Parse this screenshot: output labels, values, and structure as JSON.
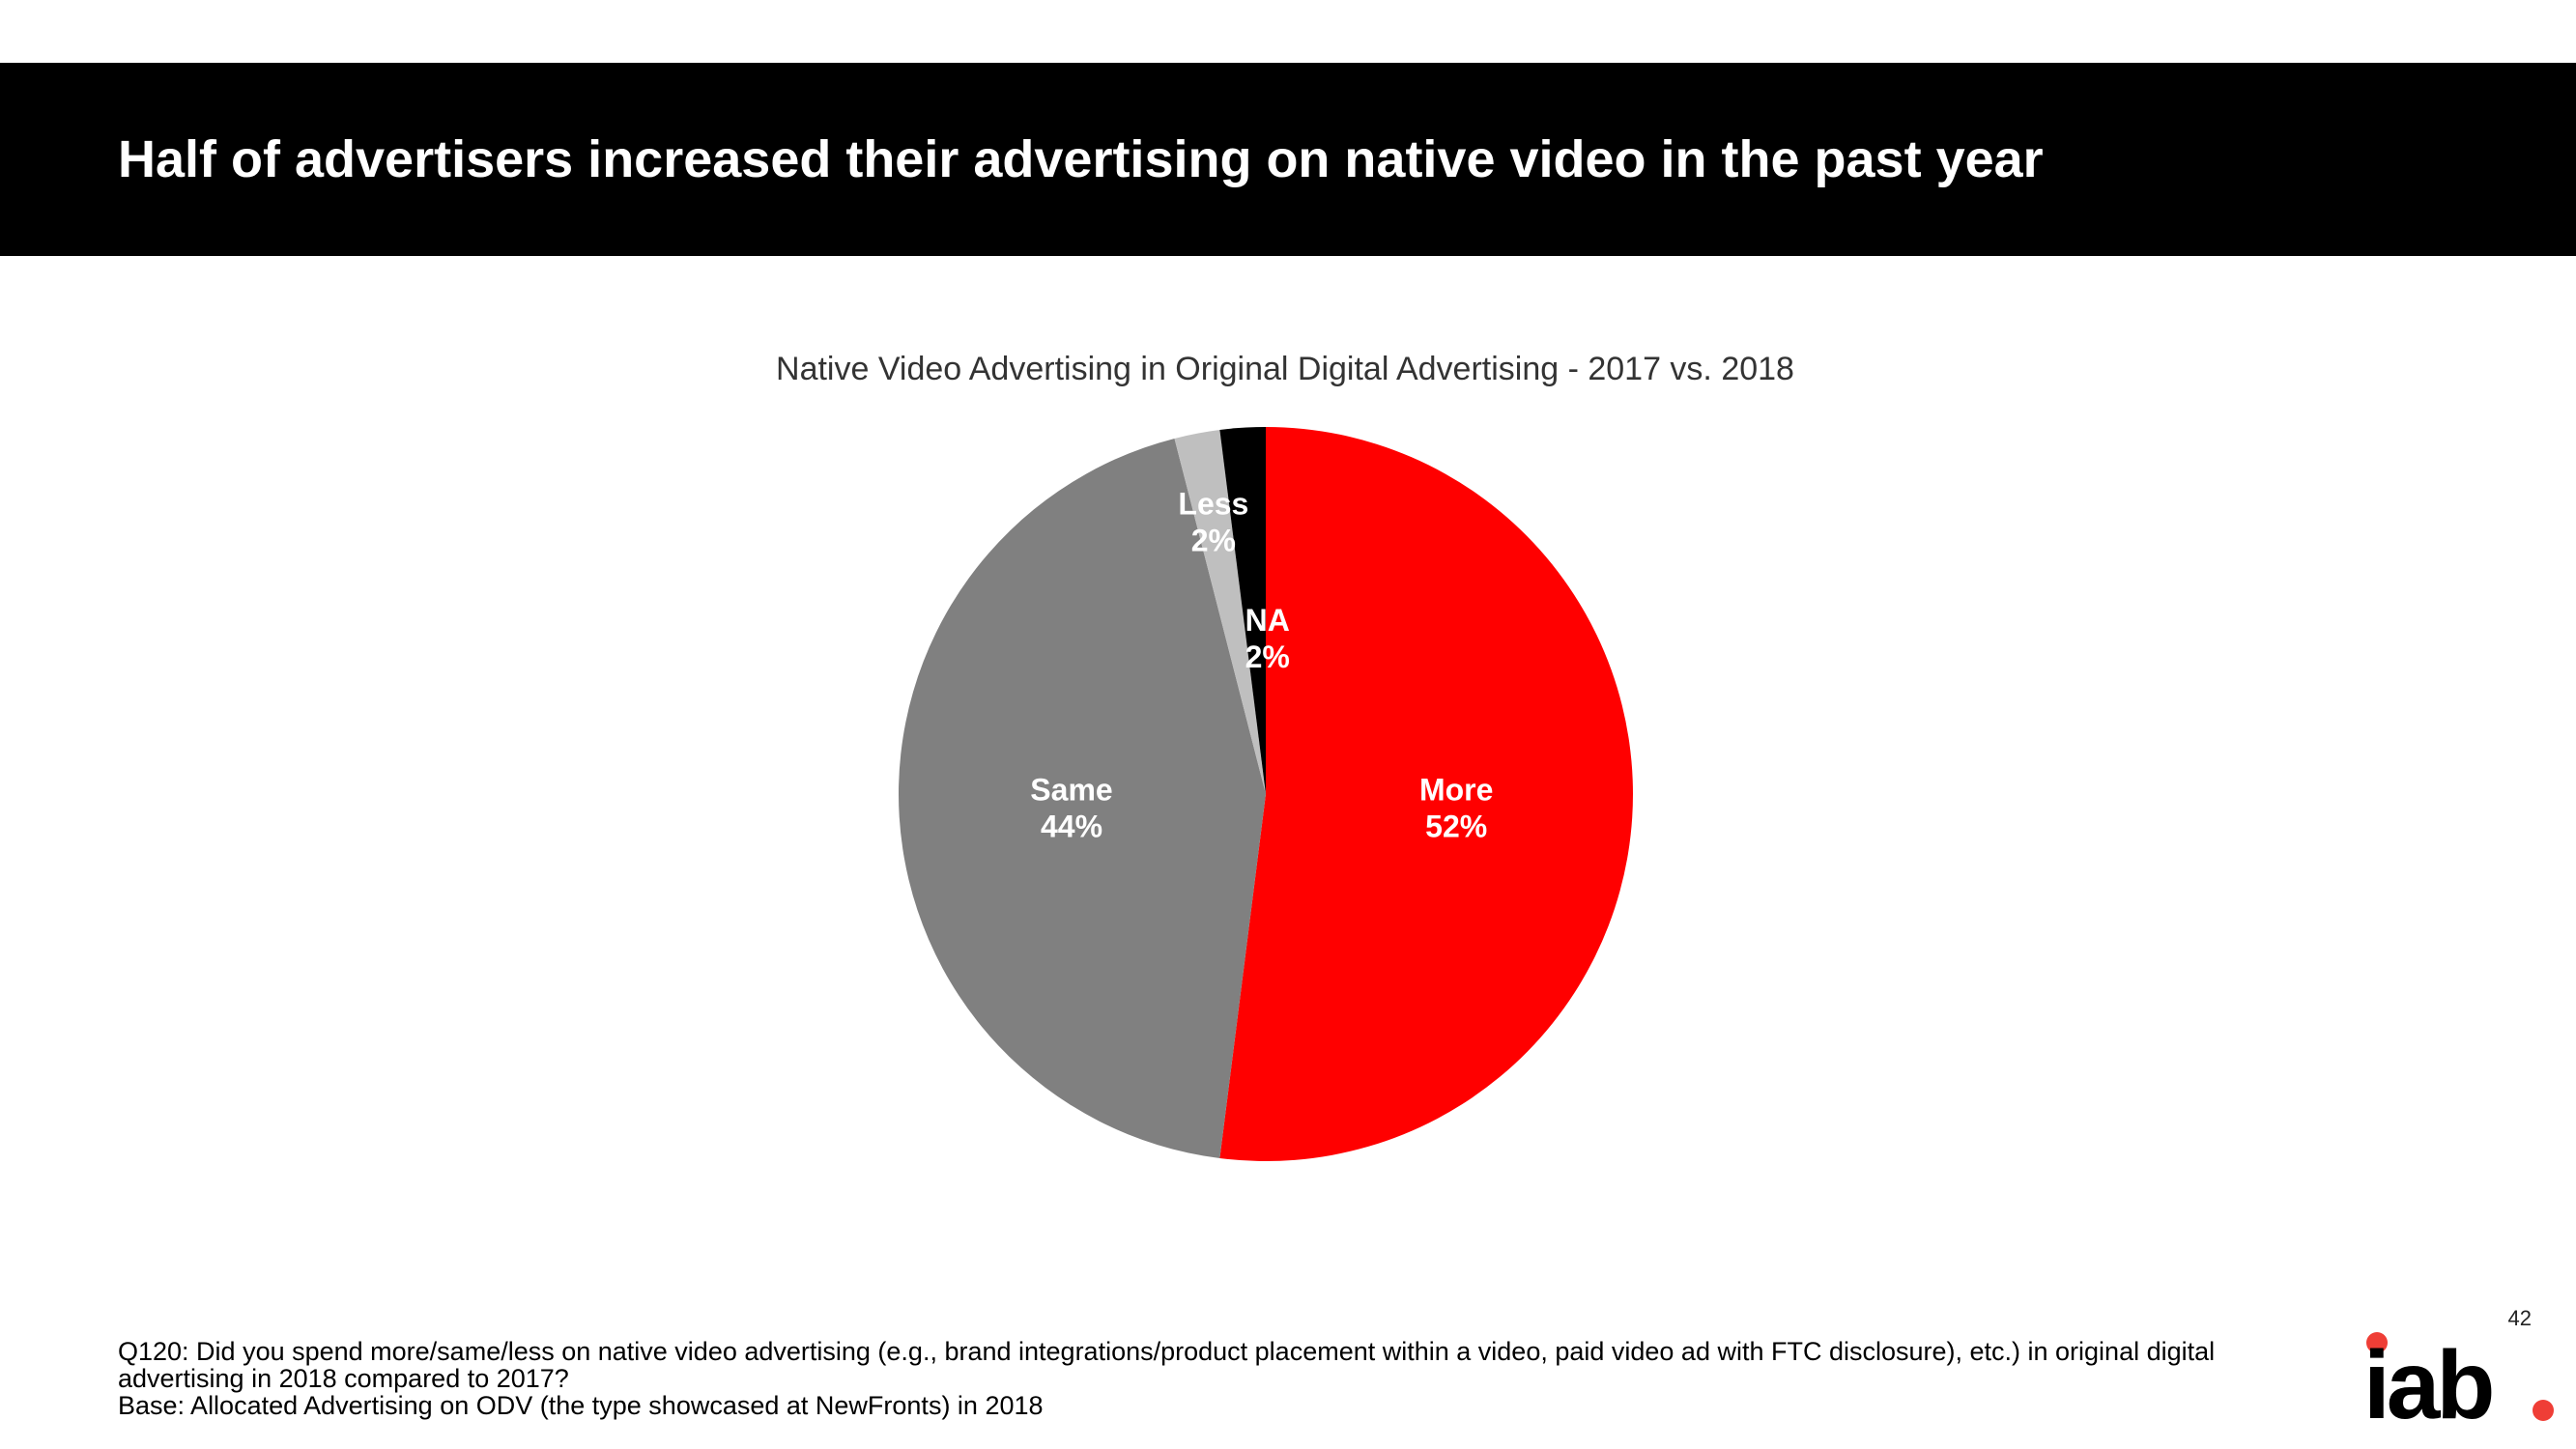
{
  "header": {
    "title": "Half of advertisers increased their advertising on native video in the past year"
  },
  "colors": {
    "header_band": "#000000",
    "more": "#ff0000",
    "same": "#808080",
    "less": "#bfbfbf",
    "na": "#000000",
    "logo_dot": "#ef3e36"
  },
  "chart_data": {
    "type": "pie",
    "title": "Native Video Advertising in Original Digital Advertising - 2017 vs. 2018",
    "slices": [
      {
        "label": "More",
        "value": 52,
        "value_label": "52%",
        "color": "#ff0000"
      },
      {
        "label": "Same",
        "value": 44,
        "value_label": "44%",
        "color": "#808080"
      },
      {
        "label": "Less",
        "value": 2,
        "value_label": "2%",
        "color": "#bfbfbf"
      },
      {
        "label": "NA",
        "value": 2,
        "value_label": "2%",
        "color": "#000000"
      }
    ],
    "start": "12 o'clock",
    "direction": "clockwise",
    "legend": "none"
  },
  "footnote": {
    "question": "Q120: Did you spend more/same/less on native video advertising (e.g., brand integrations/product placement within a video, paid video ad with FTC disclosure), etc.) in original digital advertising in 2018 compared to 2017?",
    "base": "Base: Allocated Advertising on ODV (the type showcased at NewFronts) in 2018"
  },
  "page_number": "42",
  "logo": {
    "text": "iab",
    "icon": "iab-logo"
  }
}
